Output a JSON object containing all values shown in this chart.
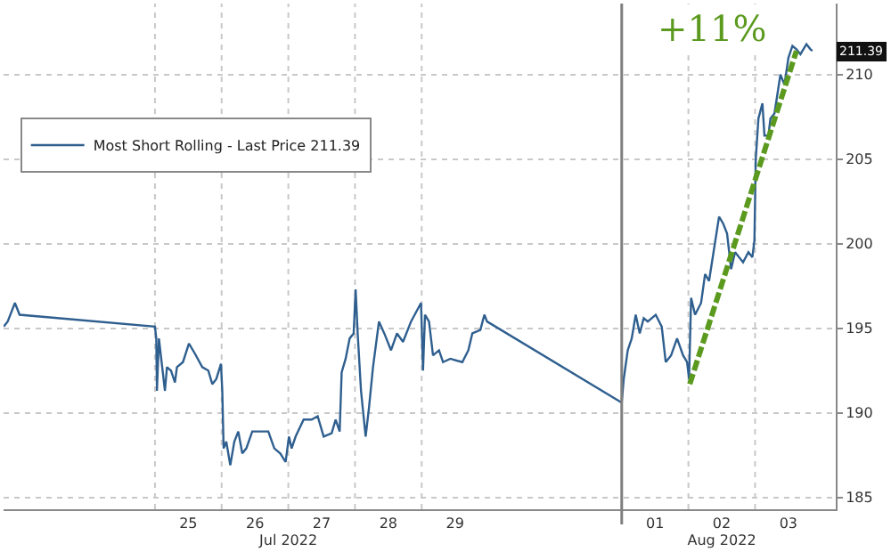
{
  "chart_data": {
    "type": "line",
    "xlim": [
      "2022-07-22T17:31",
      "2022-08-04T05:02"
    ],
    "xticks": [
      {
        "value": "2022-07-25T00:00",
        "label": null
      },
      {
        "value": "2022-07-25T12:00",
        "label": "25"
      },
      {
        "value": "2022-07-26T00:00",
        "label": null
      },
      {
        "value": "2022-07-26T12:00",
        "label": "26"
      },
      {
        "value": "2022-07-27T00:00",
        "label": null
      },
      {
        "value": "2022-07-27T12:00",
        "label": "27"
      },
      {
        "value": "2022-07-28T00:00",
        "label": null
      },
      {
        "value": "2022-07-28T12:00",
        "label": "28"
      },
      {
        "value": "2022-07-29T00:00",
        "label": null
      },
      {
        "value": "2022-07-29T12:00",
        "label": "29"
      },
      {
        "value": "2022-08-01T00:00",
        "label": null
      },
      {
        "value": "2022-08-01T12:00",
        "label": "01"
      },
      {
        "value": "2022-08-02T00:00",
        "label": null
      },
      {
        "value": "2022-08-02T12:00",
        "label": "02"
      },
      {
        "value": "2022-08-03T00:00",
        "label": null
      },
      {
        "value": "2022-08-03T12:00",
        "label": "03"
      }
    ],
    "x2lim": [
      "2022-07-22T17:31",
      "2022-08-04T05:02"
    ],
    "x2ticks": [
      {
        "value": "2022-07-27T00:00",
        "label": "Jul 2022"
      },
      {
        "value": "2022-08-02T12:00",
        "label": "Aug 2022"
      }
    ],
    "ylim": [
      184.3,
      214.2
    ],
    "yticks": [
      185,
      190,
      195,
      200,
      205,
      210
    ],
    "grid": true,
    "legend": "left",
    "line_style": "solid",
    "marker": "none",
    "ref_lines": [
      {
        "axis": "x",
        "value": "2022-08-01T00:00",
        "label": null,
        "color": "#7f7f7f"
      }
    ],
    "annotations": [
      "+11%",
      {
        "text": "211.39",
        "y": 211.39
      }
    ],
    "series": [
      {
        "name": "Most Short Rolling - Last Price 211.39",
        "color": "#2f5f8f",
        "x": [
          "2022-07-22T17:34",
          "2022-07-22T19:00",
          "2022-07-22T21:36",
          "2022-07-22T23:17",
          "2022-07-25T00:00",
          "2022-07-25T00:29",
          "2022-07-25T00:43",
          "2022-07-25T01:26",
          "2022-07-25T02:24",
          "2022-07-25T03:36",
          "2022-07-25T04:19",
          "2022-07-25T05:46",
          "2022-07-25T07:12",
          "2022-07-25T07:55",
          "2022-07-25T10:05",
          "2022-07-25T12:14",
          "2022-07-25T14:24",
          "2022-07-25T17:02",
          "2022-07-25T19:12",
          "2022-07-25T20:38",
          "2022-07-25T22:05",
          "2022-07-25T23:46",
          "2022-07-26T00:14",
          "2022-07-26T00:43",
          "2022-07-26T01:41",
          "2022-07-26T03:07",
          "2022-07-26T04:34",
          "2022-07-26T06:00",
          "2022-07-26T07:26",
          "2022-07-26T08:53",
          "2022-07-26T11:02",
          "2022-07-26T13:55",
          "2022-07-26T16:48",
          "2022-07-26T18:58",
          "2022-07-26T21:07",
          "2022-07-26T23:02",
          "2022-07-27T00:14",
          "2022-07-27T01:12",
          "2022-07-27T02:38",
          "2022-07-27T05:31",
          "2022-07-27T08:24",
          "2022-07-27T10:34",
          "2022-07-27T12:43",
          "2022-07-27T15:36",
          "2022-07-27T17:02",
          "2022-07-27T18:29",
          "2022-07-27T19:12",
          "2022-07-27T20:38",
          "2022-07-27T22:05",
          "2022-07-27T23:31",
          "2022-07-28T00:14",
          "2022-07-28T00:58",
          "2022-07-28T02:10",
          "2022-07-28T03:50",
          "2022-07-28T05:02",
          "2022-07-28T06:29",
          "2022-07-28T08:38",
          "2022-07-28T10:48",
          "2022-07-28T12:58",
          "2022-07-28T15:07",
          "2022-07-28T17:17",
          "2022-07-28T20:10",
          "2022-07-28T23:46",
          "2022-07-29T00:29",
          "2022-07-29T01:12",
          "2022-07-29T02:38",
          "2022-07-29T04:05",
          "2022-07-29T06:14",
          "2022-07-29T07:41",
          "2022-07-29T10:19",
          "2022-07-29T14:38",
          "2022-07-29T16:48",
          "2022-07-29T18:14",
          "2022-07-29T21:07",
          "2022-07-29T22:34",
          "2022-07-29T23:31",
          "2022-08-01T00:00",
          "2022-08-01T00:43",
          "2022-08-01T02:10",
          "2022-08-01T03:36",
          "2022-08-01T05:02",
          "2022-08-01T06:29",
          "2022-08-01T07:55",
          "2022-08-01T09:22",
          "2022-08-01T12:14",
          "2022-08-01T14:24",
          "2022-08-01T15:50",
          "2022-08-01T17:46",
          "2022-08-01T19:55",
          "2022-08-01T22:05",
          "2022-08-01T23:31",
          "2022-08-02T00:14",
          "2022-08-02T00:58",
          "2022-08-02T02:24",
          "2022-08-02T04:34",
          "2022-08-02T06:00",
          "2022-08-02T07:26",
          "2022-08-02T11:02",
          "2022-08-02T12:29",
          "2022-08-02T13:55",
          "2022-08-02T15:22",
          "2022-08-02T16:48",
          "2022-08-02T19:41",
          "2022-08-02T21:36",
          "2022-08-02T23:02",
          "2022-08-02T23:46",
          "2022-08-03T00:14",
          "2022-08-03T01:12",
          "2022-08-03T02:38",
          "2022-08-03T03:22",
          "2022-08-03T04:48",
          "2022-08-03T05:31",
          "2022-08-03T06:58",
          "2022-08-03T09:07",
          "2022-08-03T10:34",
          "2022-08-03T12:00",
          "2022-08-03T13:26",
          "2022-08-03T14:53",
          "2022-08-03T16:19",
          "2022-08-03T18:29",
          "2022-08-03T19:55",
          "2022-08-03T20:38"
        ],
        "values": [
          195.1,
          195.4,
          196.5,
          195.8,
          195.1,
          194.4,
          191.3,
          194.4,
          193.0,
          191.3,
          192.7,
          192.5,
          191.8,
          192.7,
          193.0,
          194.1,
          193.5,
          192.7,
          192.5,
          191.7,
          192.0,
          192.9,
          191.3,
          187.9,
          188.3,
          186.9,
          188.3,
          188.9,
          187.6,
          187.9,
          188.9,
          188.9,
          188.9,
          187.9,
          187.6,
          187.1,
          188.6,
          187.9,
          188.6,
          189.6,
          189.6,
          189.8,
          188.6,
          188.8,
          189.6,
          188.9,
          192.4,
          193.2,
          194.4,
          194.7,
          197.3,
          194.7,
          191.3,
          188.6,
          190.3,
          192.7,
          195.4,
          194.6,
          193.7,
          194.7,
          194.2,
          195.4,
          196.5,
          192.5,
          195.8,
          195.4,
          193.4,
          193.7,
          193.0,
          193.2,
          193.0,
          193.7,
          194.7,
          194.9,
          195.8,
          195.4,
          190.6,
          192.0,
          193.7,
          194.4,
          195.8,
          194.7,
          195.6,
          195.4,
          195.8,
          195.1,
          193.0,
          193.4,
          194.4,
          193.4,
          193.0,
          192.0,
          196.8,
          195.8,
          196.5,
          198.2,
          197.8,
          201.6,
          201.2,
          200.6,
          198.5,
          199.5,
          198.9,
          199.5,
          199.2,
          200.2,
          205.0,
          207.4,
          208.3,
          206.4,
          206.4,
          207.4,
          207.7,
          210.0,
          209.4,
          211.0,
          211.7,
          211.5,
          211.2,
          211.8,
          211.5,
          211.4
        ]
      },
      {
        "color": "#5b9a1e",
        "line_style": "dashed",
        "x": [
          "2022-08-02T00:29",
          "2022-08-03T14:53"
        ],
        "values": [
          191.7,
          211.4
        ]
      }
    ]
  }
}
